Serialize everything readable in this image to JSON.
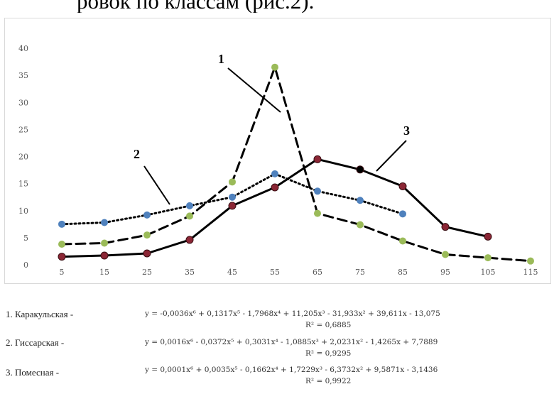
{
  "header_text": "ровок  по классам (рис.2).",
  "chart_data": {
    "type": "line",
    "x": [
      5,
      15,
      25,
      35,
      45,
      55,
      65,
      75,
      85,
      95,
      105,
      115
    ],
    "ylim": [
      0,
      40
    ],
    "yticks": [
      0,
      5,
      10,
      15,
      20,
      25,
      30,
      35,
      40
    ],
    "xticks": [
      "5",
      "15",
      "25",
      "35",
      "45",
      "55",
      "65",
      "75",
      "85",
      "95",
      "105",
      "115"
    ],
    "grid": false,
    "series": [
      {
        "label": "1",
        "style": "dashed",
        "line_color": "#000000",
        "marker_color": "#9bbb59",
        "values": [
          3.8,
          4.0,
          5.5,
          9.0,
          15.3,
          36.5,
          9.5,
          7.4,
          4.4,
          1.9,
          1.3,
          0.7
        ]
      },
      {
        "label": "2",
        "style": "dotted",
        "line_color": "#000000",
        "marker_color": "#4f81bd",
        "values": [
          7.5,
          7.8,
          9.2,
          10.9,
          12.5,
          16.8,
          13.6,
          11.9,
          9.4,
          null,
          null,
          null
        ]
      },
      {
        "label": "3",
        "style": "solid",
        "line_color": "#000000",
        "marker_color": "#8b2635",
        "values": [
          1.5,
          1.7,
          2.1,
          4.6,
          10.9,
          14.3,
          19.5,
          17.6,
          14.5,
          7.0,
          5.2,
          null
        ]
      }
    ]
  },
  "equations": [
    {
      "name": "1. Каракульская -",
      "formula": "y = -0,0036x⁶ + 0,1317x⁵ - 1,7968x⁴ + 11,205x³ - 31,933x² + 39,611x - 13,075",
      "r2": "R² = 0,6885"
    },
    {
      "name": "2. Гиссарская  -",
      "formula": "y = 0,0016x⁶ - 0,0372x⁵ + 0,3031x⁴ - 1,0885x³ + 2,0231x² - 1,4265x + 7,7889",
      "r2": "R² = 0,9295"
    },
    {
      "name": "3. Помесная  -",
      "formula": "y = 0,0001x⁶ + 0,0035x⁵ - 0,1662x⁴ + 1,7229x³ - 6,3732x² + 9,5871x - 3,1436",
      "r2": "R² = 0,9922"
    }
  ]
}
